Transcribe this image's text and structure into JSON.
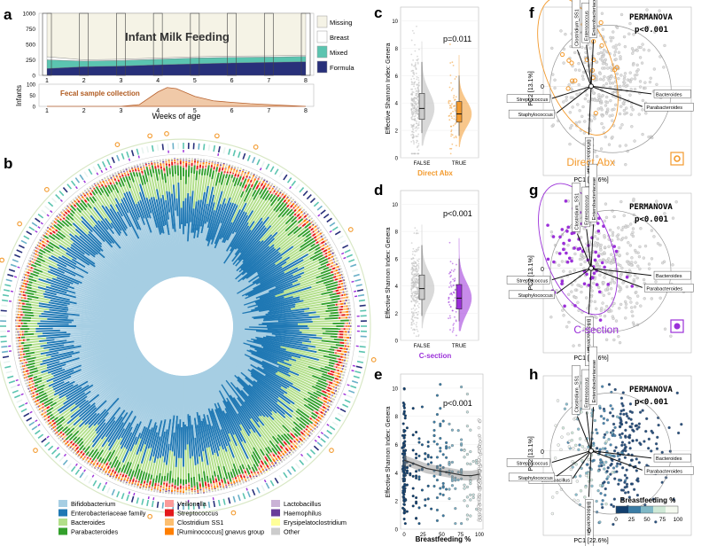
{
  "colors": {
    "Bifidobacterium": "#a6cee3",
    "Enterobacteriaceae family": "#1f78b4",
    "Bacteroides": "#b2df8a",
    "Parabacteroides": "#33a02c",
    "Veillonella": "#fb9a99",
    "Streptococcus": "#e31a1c",
    "Clostridium SS1": "#fdbf6f",
    "[Ruminococcus] gnavus group": "#ff7f00",
    "Lactobacillus": "#cab2d6",
    "Haemophilus": "#6a3d9a",
    "Erysipelatoclostridium": "#ffff99",
    "Other": "#cccccc",
    "missing": "#f5f3e6",
    "breast": "#ffffff",
    "mixed": "#5bc4b0",
    "formula": "#28307a",
    "direct_abx": "#f39a2d",
    "csection": "#9b30d9",
    "control_gray": "#aaaaaa"
  },
  "panels": {
    "a": {
      "label": "a",
      "title": "Infant Milk Feeding",
      "legend": [
        "Missing",
        "Breast",
        "Mixed",
        "Formula"
      ],
      "y_label": "Infants",
      "x_label": "Weeks of age",
      "x_ticks": [
        "1",
        "2",
        "3",
        "4",
        "5",
        "6",
        "7",
        "8"
      ],
      "y_ticks": [
        "0",
        "250",
        "500",
        "750",
        "1000"
      ],
      "density_label": "Fecal sample collection",
      "density_y_ticks": [
        "0",
        "50",
        "100"
      ]
    },
    "b": {
      "label": "b",
      "legend_col1": [
        "Bifidobacterium",
        "Enterobacteriaceae family",
        "Bacteroides",
        "Parabacteroides"
      ],
      "legend_col2": [
        "Veillonella",
        "Streptococcus",
        "Clostridium SS1",
        "[Ruminococcus] gnavus group"
      ],
      "legend_col3": [
        "Lactobacillus",
        "Haemophilus",
        "Erysipelatoclostridium",
        "Other"
      ]
    },
    "c": {
      "label": "c",
      "y_label": "Effective Shannon Index: Genera",
      "pvalue": "p=0.011",
      "x_ticks": [
        "FALSE",
        "TRUE"
      ],
      "x_label": "Direct Abx",
      "y_ticks": [
        "0",
        "2",
        "4",
        "6",
        "8",
        "10"
      ]
    },
    "d": {
      "label": "d",
      "y_label": "Effective Shannon Index: Genera",
      "pvalue": "p<0.001",
      "x_ticks": [
        "FALSE",
        "TRUE"
      ],
      "x_label": "C-section",
      "y_ticks": [
        "0",
        "2",
        "4",
        "6",
        "8",
        "10"
      ]
    },
    "e": {
      "label": "e",
      "y_label": "Effective Shannon Index: Genera",
      "pvalue": "p<0.001",
      "x_label": "Breastfeeding %",
      "x_ticks": [
        "0",
        "25",
        "50",
        "75",
        "100"
      ],
      "y_ticks": [
        "0",
        "2",
        "4",
        "6",
        "8",
        "10"
      ]
    },
    "f": {
      "label": "f",
      "stat_title": "PERMANOVA",
      "pvalue": "p<0.001",
      "x_label": "PC1 [22.6%]",
      "y_label": "PC2 [13.1%]",
      "zero": "0",
      "legend": "Direct Abx"
    },
    "g": {
      "label": "g",
      "stat_title": "PERMANOVA",
      "pvalue": "p<0.001",
      "x_label": "PC1 [22.6%]",
      "y_label": "PC2 [13.1%]",
      "zero": "0",
      "legend": "C-section"
    },
    "h": {
      "label": "h",
      "stat_title": "PERMANOVA",
      "pvalue": "p<0.001",
      "x_label": "PC1 [22.6%]",
      "y_label": "PC2 [13.1%]",
      "zero": "0",
      "legend_title": "Breastfeeding %",
      "legend_ticks": [
        "0",
        "25",
        "50",
        "75",
        "100"
      ]
    }
  },
  "arrows": [
    "Bacteroides",
    "Parabacteroides",
    "Bifidobacterium",
    "Staphylococcus",
    "Streptococcus",
    "Clostridium_SS1",
    "Enterococcus",
    "Enterobacteriaceae"
  ],
  "arrows_h": [
    "Bacteroides",
    "Parabacteroides",
    "Bifidobacterium",
    "Lactobacillus",
    "Streptococcus",
    "Staphylococcus",
    "Clostridium_SS1",
    "Enterococcus",
    "Enterobacteriaceae"
  ],
  "chart_data": [
    {
      "panel": "a",
      "type": "area",
      "title": "Infant Milk Feeding",
      "xlabel": "Weeks of age",
      "ylabel": "Infants",
      "ylim": [
        0,
        1000
      ],
      "categories": [
        "1",
        "2",
        "3",
        "4",
        "5",
        "6",
        "7",
        "8"
      ],
      "series": [
        {
          "name": "Formula",
          "values": [
            110,
            140,
            150,
            170,
            185,
            200,
            210,
            220
          ]
        },
        {
          "name": "Mixed",
          "values": [
            140,
            90,
            90,
            90,
            95,
            90,
            85,
            85
          ]
        },
        {
          "name": "Breast",
          "values": [
            50,
            20,
            20,
            20,
            20,
            20,
            20,
            20
          ]
        },
        {
          "name": "Missing",
          "values": [
            700,
            750,
            740,
            720,
            700,
            690,
            685,
            675
          ]
        }
      ]
    },
    {
      "panel": "a-density",
      "type": "area",
      "title": "Fecal sample collection",
      "xlabel": "Weeks of age",
      "ylabel": "Infants",
      "ylim": [
        0,
        100
      ],
      "x": [
        1,
        2,
        3,
        3.5,
        4,
        4.25,
        4.5,
        5,
        5.5,
        6,
        6.5,
        7,
        7.5,
        8
      ],
      "values": [
        0,
        0,
        0,
        8,
        65,
        85,
        80,
        45,
        25,
        18,
        12,
        8,
        4,
        0
      ]
    },
    {
      "panel": "b",
      "type": "bar",
      "title": "",
      "categories": [
        "Bifidobacterium",
        "Enterobacteriaceae family",
        "Bacteroides",
        "Parabacteroides",
        "Veillonella",
        "Streptococcus",
        "Clostridium SS1",
        "[Ruminococcus] gnavus group",
        "Lactobacillus",
        "Haemophilus",
        "Erysipelatoclostridium",
        "Other"
      ],
      "values": [
        0.46,
        0.22,
        0.13,
        0.05,
        0.03,
        0.03,
        0.02,
        0.02,
        0.01,
        0.01,
        0.01,
        0.01
      ]
    },
    {
      "panel": "c",
      "type": "scatter",
      "title": "",
      "xlabel": "Direct Abx",
      "ylabel": "Effective Shannon Index: Genera",
      "ylim": [
        0,
        11
      ],
      "categories": [
        "FALSE",
        "TRUE"
      ],
      "series": [
        {
          "name": "FALSE",
          "values": [
            1.8,
            2.8,
            3.6,
            4.7,
            7.0
          ]
        },
        {
          "name": "TRUE",
          "values": [
            1.6,
            2.6,
            3.2,
            4.1,
            6.0
          ]
        }
      ]
    },
    {
      "panel": "d",
      "type": "scatter",
      "title": "",
      "xlabel": "C-section",
      "ylabel": "Effective Shannon Index: Genera",
      "ylim": [
        0,
        11
      ],
      "categories": [
        "FALSE",
        "TRUE"
      ],
      "series": [
        {
          "name": "FALSE",
          "values": [
            1.8,
            3.0,
            3.8,
            4.8,
            7.0
          ]
        },
        {
          "name": "TRUE",
          "values": [
            1.4,
            2.3,
            3.1,
            4.1,
            6.0
          ]
        }
      ]
    },
    {
      "panel": "e",
      "type": "scatter",
      "title": "",
      "xlabel": "Breastfeeding %",
      "ylabel": "Effective Shannon Index: Genera",
      "ylim": [
        0,
        11
      ],
      "x": [
        0,
        10,
        20,
        30,
        40,
        50,
        60,
        70,
        80,
        90,
        100
      ],
      "values": [
        4.9,
        4.7,
        4.5,
        4.3,
        4.2,
        4.1,
        4.0,
        3.9,
        3.8,
        3.8,
        3.9
      ]
    },
    {
      "panel": "f",
      "type": "scatter",
      "title": "",
      "xlabel": "PC1 [22.6%]",
      "ylabel": "PC2 [13.1%]",
      "series": [
        {
          "name": "Direct Abx",
          "values": []
        }
      ]
    },
    {
      "panel": "g",
      "type": "scatter",
      "title": "",
      "xlabel": "PC1 [22.6%]",
      "ylabel": "PC2 [13.1%]",
      "series": [
        {
          "name": "C-section",
          "values": []
        }
      ]
    },
    {
      "panel": "h",
      "type": "scatter",
      "title": "",
      "xlabel": "PC1 [22.6%]",
      "ylabel": "PC2 [13.1%]",
      "series": [
        {
          "name": "Breastfeeding %",
          "values": []
        }
      ]
    }
  ]
}
